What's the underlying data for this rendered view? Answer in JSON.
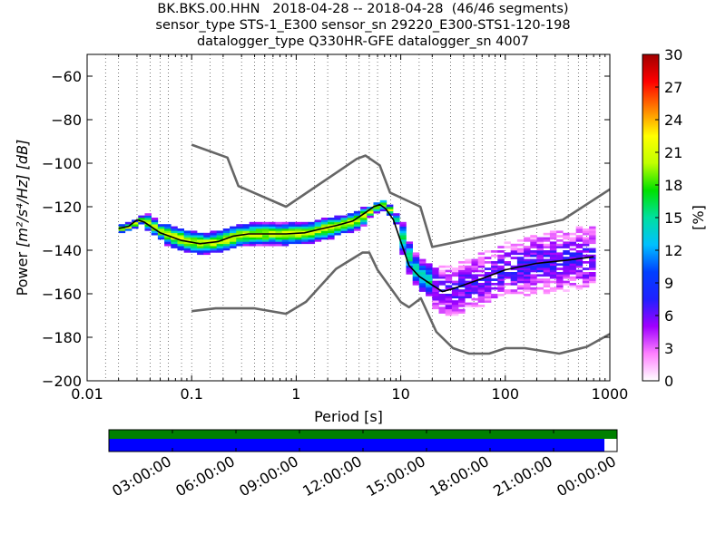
{
  "title_lines": [
    "BK.BKS.00.HHN   2018-04-28 -- 2018-04-28  (46/46 segments)",
    "sensor_type STS-1_E300 sensor_sn 29220_E300-STS1-120-198",
    "datalogger_type Q330HR-GFE datalogger_sn 4007"
  ],
  "chart_data": {
    "type": "heatmap",
    "xlabel": "Period [s]",
    "ylabel_prefix": "Power",
    "ylabel_units": "[m²/s⁴/Hz] [dB]",
    "x_scale": "log",
    "xlim": [
      0.01,
      1000
    ],
    "ylim": [
      -200,
      -50
    ],
    "x_ticks": [
      0.01,
      0.1,
      1,
      10,
      100,
      1000
    ],
    "x_tick_labels": [
      "0.01",
      "0.1",
      "1",
      "10",
      "100",
      "1000"
    ],
    "y_ticks": [
      -200,
      -180,
      -160,
      -140,
      -120,
      -100,
      -80,
      -60
    ],
    "y_tick_labels": [
      "−200",
      "−180",
      "−160",
      "−140",
      "−120",
      "−100",
      "−80",
      "−60"
    ],
    "grid": "dotted vertical gridlines at each period bin",
    "colorbar": {
      "label": "[%]",
      "range": [
        0,
        30
      ],
      "ticks": [
        0,
        3,
        6,
        9,
        12,
        15,
        18,
        21,
        24,
        27,
        30
      ],
      "colormap": [
        "#ffffff",
        "#ff80ff",
        "#a000ff",
        "#2020ff",
        "#0040ff",
        "#00c0ff",
        "#00e0a0",
        "#00e000",
        "#c0ff00",
        "#ffff00",
        "#ff8000",
        "#ff0000",
        "#a00000"
      ]
    },
    "series": [
      {
        "kind": "noise_model_high",
        "color": "#666666",
        "x": [
          0.1,
          0.22,
          0.28,
          0.8,
          3.8,
          4.6,
          6.3,
          7.9,
          15.4,
          20,
          354.8,
          1000
        ],
        "y": [
          -91.5,
          -97.4,
          -110.5,
          -120,
          -98,
          -96.5,
          -101,
          -113.5,
          -120,
          -138.5,
          -126,
          -112
        ]
      },
      {
        "kind": "noise_model_low",
        "color": "#666666",
        "x": [
          0.1,
          0.17,
          0.4,
          0.8,
          1.24,
          2.4,
          4.3,
          5,
          6,
          10,
          12,
          15.6,
          21.9,
          31.6,
          45,
          70,
          101,
          154,
          328,
          600,
          1000
        ],
        "y": [
          -168,
          -166.7,
          -166.7,
          -169.2,
          -163.7,
          -148.6,
          -141.1,
          -141.1,
          -149,
          -163.8,
          -166.2,
          -162.1,
          -177.5,
          -185,
          -187.5,
          -187.5,
          -185,
          -185,
          -187.5,
          -184.4,
          -178.5
        ]
      },
      {
        "kind": "mean_psd",
        "color": "#000000",
        "x": [
          0.02,
          0.025,
          0.03,
          0.035,
          0.05,
          0.08,
          0.12,
          0.18,
          0.25,
          0.35,
          0.5,
          0.8,
          1.2,
          1.8,
          2.5,
          3.5,
          4.5,
          5.5,
          6.3,
          7.2,
          8.5,
          10,
          12,
          15,
          20,
          25,
          30,
          40,
          60,
          100,
          200,
          400,
          700
        ],
        "y": [
          -130,
          -129,
          -126,
          -127,
          -132,
          -135.5,
          -137,
          -136,
          -133.5,
          -132.5,
          -132.5,
          -132.5,
          -132,
          -130,
          -128.5,
          -126.5,
          -123,
          -120,
          -119,
          -121,
          -126,
          -136,
          -147,
          -152,
          -156,
          -159,
          -158,
          -156,
          -153,
          -149,
          -146,
          -144.5,
          -143
        ]
      }
    ],
    "psd_density_cloud": "probability density of PSD values per period bin, colored by percent (0-30)"
  },
  "availability": {
    "tick_labels": [
      "03:00:00",
      "06:00:00",
      "09:00:00",
      "12:00:00",
      "15:00:00",
      "18:00:00",
      "21:00:00",
      "00:00:00"
    ],
    "data_coverage": 0.975,
    "colors": {
      "top_strip": "#008000",
      "data": "#0000ff",
      "gap": "#ffffff"
    }
  }
}
